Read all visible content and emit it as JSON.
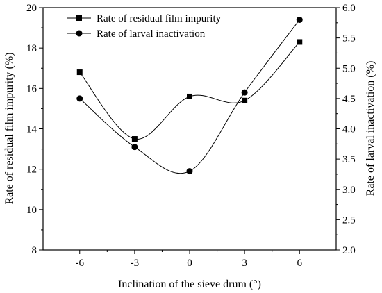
{
  "chart_data": {
    "type": "line",
    "xlabel": "Inclination of the sieve drum (°)",
    "ylabel_left": "Rate of residual film impurity (%)",
    "ylabel_right": "Rate of larval inactivation (%)",
    "x": [
      -6,
      -3,
      0,
      3,
      6
    ],
    "xlim": [
      -8,
      8
    ],
    "ylim_left": [
      8,
      20
    ],
    "ylim_right": [
      2.0,
      6.0
    ],
    "xticks": [
      "-6",
      "-3",
      "0",
      "3",
      "6"
    ],
    "yticks_left": [
      "8",
      "10",
      "12",
      "14",
      "16",
      "18",
      "20"
    ],
    "yticks_right": [
      "2.0",
      "2.5",
      "3.0",
      "3.5",
      "4.0",
      "4.5",
      "5.0",
      "5.5",
      "6.0"
    ],
    "grid": false,
    "legend_position": "top-left",
    "series": [
      {
        "name": "Rate of residual film impurity",
        "axis": "left",
        "marker": "square",
        "values": [
          16.8,
          13.5,
          15.6,
          15.4,
          18.3
        ]
      },
      {
        "name": "Rate of larval inactivation",
        "axis": "right",
        "marker": "circle",
        "values": [
          4.5,
          3.7,
          3.3,
          4.6,
          5.8
        ]
      }
    ]
  }
}
